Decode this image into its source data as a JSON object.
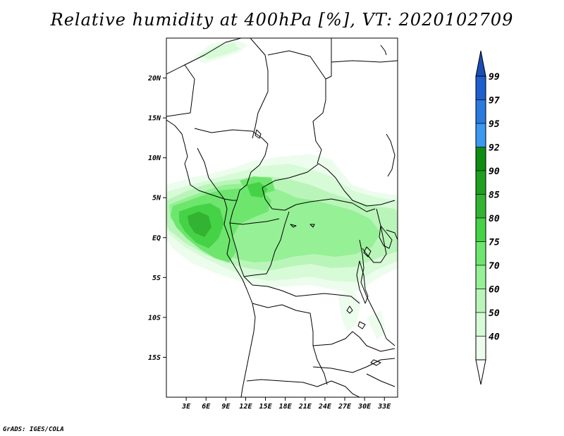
{
  "title": "Relative humidity at 400hPa [%], VT: 2020102709",
  "credit": "GrADS: IGES/COLA",
  "map": {
    "lon_range": [
      0,
      35
    ],
    "lat_range": [
      -20,
      25
    ],
    "lat_ticks": [
      {
        "value": 20,
        "label": "20N"
      },
      {
        "value": 15,
        "label": "15N"
      },
      {
        "value": 10,
        "label": "10N"
      },
      {
        "value": 5,
        "label": "5N"
      },
      {
        "value": 0,
        "label": "EQ"
      },
      {
        "value": -5,
        "label": "5S"
      },
      {
        "value": -10,
        "label": "10S"
      },
      {
        "value": -15,
        "label": "15S"
      }
    ],
    "lon_ticks": [
      {
        "value": 3,
        "label": "3E"
      },
      {
        "value": 6,
        "label": "6E"
      },
      {
        "value": 9,
        "label": "9E"
      },
      {
        "value": 12,
        "label": "12E"
      },
      {
        "value": 15,
        "label": "15E"
      },
      {
        "value": 18,
        "label": "18E"
      },
      {
        "value": 21,
        "label": "21E"
      },
      {
        "value": 24,
        "label": "24E"
      },
      {
        "value": 27,
        "label": "27E"
      },
      {
        "value": 30,
        "label": "30E"
      },
      {
        "value": 33,
        "label": "33E"
      }
    ]
  },
  "colorbar": {
    "levels": [
      {
        "label": "99",
        "color": "#1e5fcf"
      },
      {
        "label": "97",
        "color": "#2a7ae0"
      },
      {
        "label": "95",
        "color": "#3c98f0"
      },
      {
        "label": "92",
        "color": "#0f8c12"
      },
      {
        "label": "90",
        "color": "#1ea01e"
      },
      {
        "label": "85",
        "color": "#32b432"
      },
      {
        "label": "80",
        "color": "#46d246"
      },
      {
        "label": "75",
        "color": "#6ee66e"
      },
      {
        "label": "70",
        "color": "#96f096"
      },
      {
        "label": "60",
        "color": "#b9f5b9"
      },
      {
        "label": "50",
        "color": "#d7fad7"
      },
      {
        "label": "40",
        "color": "#edfded"
      }
    ],
    "top_color": "#1a4db5",
    "bottom_color": "#ffffff"
  }
}
